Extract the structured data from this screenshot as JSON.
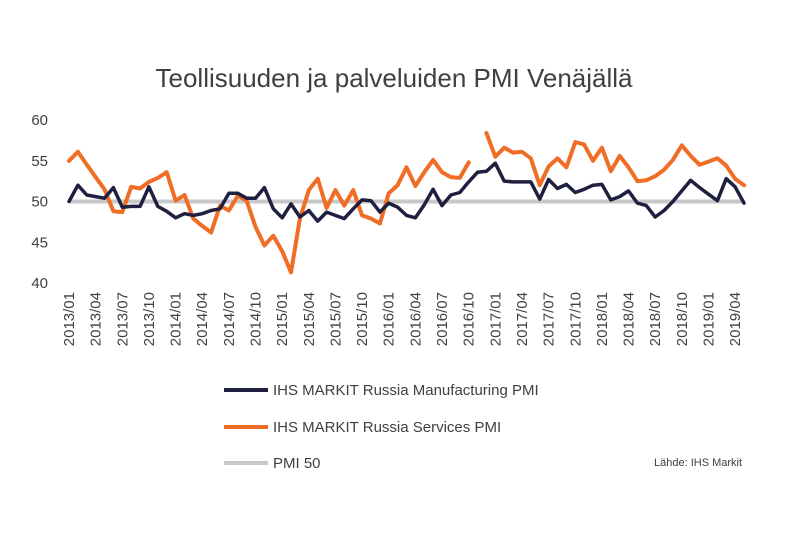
{
  "chart_data": {
    "type": "line",
    "title": "Teollisuuden ja palveluiden PMI Venäjällä",
    "xlabel": "",
    "ylabel": "",
    "ylim": [
      40,
      60
    ],
    "yticks": [
      40,
      45,
      50,
      55,
      60
    ],
    "xticks": [
      "2013/01",
      "2013/04",
      "2013/07",
      "2013/10",
      "2014/01",
      "2014/04",
      "2014/07",
      "2014/10",
      "2015/01",
      "2015/04",
      "2015/07",
      "2015/10",
      "2016/01",
      "2016/04",
      "2016/07",
      "2016/10",
      "2017/01",
      "2017/04",
      "2017/07",
      "2017/10",
      "2018/01",
      "2018/04",
      "2018/07",
      "2018/10",
      "2019/01",
      "2019/04"
    ],
    "x_start": "2013/01",
    "x_end": "2019/05",
    "grid": false,
    "legend_position": "bottom",
    "source": "Lähde: IHS Markit",
    "series": [
      {
        "name": "IHS MARKIT Russia Manufacturing PMI",
        "color": "#1f1f3f",
        "values": [
          50.0,
          52.0,
          50.8,
          50.6,
          50.4,
          51.7,
          49.3,
          49.4,
          49.4,
          51.8,
          49.4,
          48.8,
          48.0,
          48.5,
          48.3,
          48.5,
          48.9,
          49.1,
          51.0,
          51.0,
          50.4,
          50.4,
          51.7,
          49.1,
          48.0,
          49.7,
          48.1,
          48.9,
          47.6,
          48.7,
          48.3,
          47.9,
          49.1,
          50.2,
          50.1,
          48.7,
          49.8,
          49.3,
          48.3,
          48.0,
          49.6,
          51.5,
          49.5,
          50.8,
          51.1,
          52.4,
          53.6,
          53.7,
          54.7,
          52.5,
          52.4,
          52.4,
          52.4,
          50.3,
          52.7,
          51.6,
          52.1,
          51.1,
          51.5,
          52.0,
          52.1,
          50.2,
          50.6,
          51.3,
          49.8,
          49.5,
          48.1,
          48.9,
          50.0,
          51.3,
          52.6,
          51.7,
          50.9,
          50.1,
          52.8,
          51.8,
          49.8
        ]
      },
      {
        "name": "IHS MARKIT Russia Services PMI",
        "color": "#f06d26",
        "values": [
          55.0,
          56.1,
          54.5,
          53.0,
          51.5,
          48.8,
          48.7,
          51.8,
          51.6,
          52.4,
          52.9,
          53.6,
          50.1,
          50.8,
          47.9,
          47.0,
          46.2,
          49.5,
          48.9,
          50.7,
          50.1,
          46.9,
          44.6,
          45.8,
          43.9,
          41.3,
          47.9,
          51.4,
          52.8,
          49.2,
          51.4,
          49.5,
          51.4,
          48.3,
          47.9,
          47.3,
          51.0,
          52.0,
          54.2,
          51.9,
          53.6,
          55.1,
          53.6,
          53.0,
          52.9,
          54.8,
          null,
          58.4,
          55.5,
          56.6,
          56.0,
          56.1,
          55.3,
          52.0,
          54.3,
          55.3,
          54.2,
          57.3,
          57.0,
          55.0,
          56.6,
          53.7,
          55.6,
          54.2,
          52.5,
          52.6,
          53.1,
          53.9,
          55.1,
          56.9,
          55.6,
          54.5,
          54.9,
          55.3,
          54.4,
          52.8,
          52.0
        ]
      },
      {
        "name": "PMI 50",
        "color": "#c8c8c8",
        "values": [
          50,
          50
        ]
      }
    ]
  }
}
